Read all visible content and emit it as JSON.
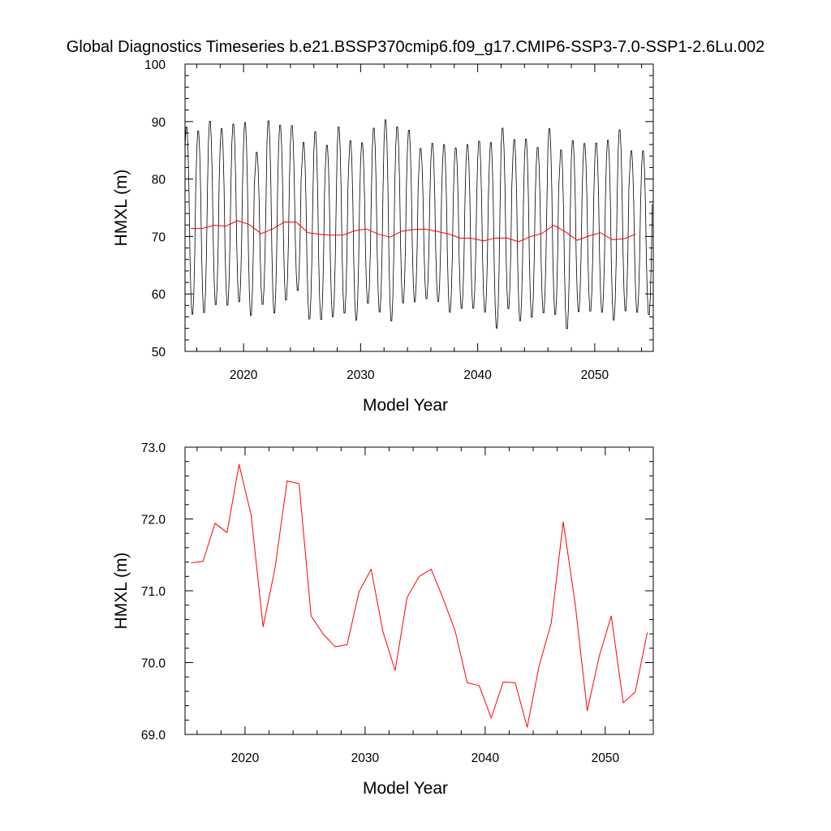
{
  "figure_title": "Global Diagnostics Timeseries b.e21.BSSP370cmip6.f09_g17.CMIP6-SSP3-7.0-SSP1-2.6Lu.002",
  "colors": {
    "monthly": "#000000",
    "annual": "#ff0000",
    "axes": "#000000",
    "background": "#ffffff"
  },
  "chart_data": [
    {
      "type": "line",
      "xlabel": "Model Year",
      "ylabel": "HMXL (m)",
      "xlim": [
        2015.0,
        2055.0
      ],
      "ylim": [
        50,
        100
      ],
      "x_ticks": [
        2020,
        2030,
        2040,
        2050
      ],
      "y_ticks": [
        50,
        60,
        70,
        80,
        90,
        100
      ],
      "y_tick_labels": [
        "50",
        "60",
        "70",
        "80",
        "90",
        "100"
      ],
      "grid": false,
      "legend": "none",
      "series": [
        {
          "kind": "monthly",
          "start_x": 2015.0,
          "step": 0.08333,
          "annual_max": [
            89.5,
            88.8,
            90.5,
            89.2,
            90.0,
            90.3,
            85.0,
            90.6,
            89.8,
            89.7,
            86.8,
            88.7,
            86.3,
            89.5,
            87.1,
            86.7,
            89.3,
            90.8,
            89.5,
            88.9,
            85.7,
            86.6,
            86.4,
            85.8,
            86.4,
            87.0,
            86.8,
            89.3,
            87.3,
            87.4,
            85.9,
            89.2,
            85.5,
            87.1,
            86.6,
            86.7,
            87.2,
            89.0,
            85.3,
            85.3
          ],
          "annual_min": [
            56.0,
            56.3,
            57.7,
            57.6,
            58.2,
            55.8,
            57.8,
            56.2,
            58.5,
            60.2,
            55.2,
            55.1,
            55.6,
            56.2,
            55.0,
            58.0,
            56.4,
            54.8,
            58.0,
            58.2,
            58.8,
            58.3,
            56.4,
            57.1,
            57.1,
            56.4,
            53.6,
            57.0,
            54.9,
            55.5,
            56.3,
            56.0,
            53.5,
            56.5,
            56.6,
            56.4,
            55.0,
            56.6,
            56.4,
            56.0
          ]
        },
        {
          "kind": "annual",
          "x": [
            2015.5,
            2016.5,
            2017.5,
            2018.5,
            2019.5,
            2020.5,
            2021.5,
            2022.5,
            2023.5,
            2024.5,
            2025.5,
            2026.5,
            2027.5,
            2028.5,
            2029.5,
            2030.5,
            2031.5,
            2032.5,
            2033.5,
            2034.5,
            2035.5,
            2036.5,
            2037.5,
            2038.5,
            2039.5,
            2040.5,
            2041.5,
            2042.5,
            2043.5,
            2044.5,
            2045.5,
            2046.5,
            2047.5,
            2048.5,
            2049.5,
            2050.5,
            2051.5,
            2052.5,
            2053.5
          ],
          "y": [
            71.39,
            71.41,
            71.94,
            71.81,
            72.76,
            72.06,
            70.5,
            71.32,
            72.53,
            72.49,
            70.65,
            70.4,
            70.22,
            70.25,
            70.99,
            71.3,
            70.42,
            69.89,
            70.91,
            71.2,
            71.3,
            70.89,
            70.44,
            69.72,
            69.68,
            69.23,
            69.73,
            69.72,
            69.1,
            69.96,
            70.55,
            71.96,
            70.81,
            69.33,
            70.09,
            70.65,
            69.44,
            69.59,
            70.42
          ]
        }
      ]
    },
    {
      "type": "line",
      "xlabel": "Model Year",
      "ylabel": "HMXL (m)",
      "xlim": [
        2015.0,
        2054.0
      ],
      "ylim": [
        69.0,
        73.0
      ],
      "x_ticks": [
        2020,
        2030,
        2040,
        2050
      ],
      "y_ticks": [
        69,
        70,
        71,
        72,
        73
      ],
      "y_tick_labels": [
        "69.0",
        "70.0",
        "71.0",
        "72.0",
        "73.0"
      ],
      "grid": false,
      "legend": "none",
      "series": [
        {
          "kind": "annual",
          "x": [
            2015.5,
            2016.5,
            2017.5,
            2018.5,
            2019.5,
            2020.5,
            2021.5,
            2022.5,
            2023.5,
            2024.5,
            2025.5,
            2026.5,
            2027.5,
            2028.5,
            2029.5,
            2030.5,
            2031.5,
            2032.5,
            2033.5,
            2034.5,
            2035.5,
            2036.5,
            2037.5,
            2038.5,
            2039.5,
            2040.5,
            2041.5,
            2042.5,
            2043.5,
            2044.5,
            2045.5,
            2046.5,
            2047.5,
            2048.5,
            2049.5,
            2050.5,
            2051.5,
            2052.5,
            2053.5
          ],
          "y": [
            71.39,
            71.41,
            71.94,
            71.81,
            72.76,
            72.06,
            70.5,
            71.32,
            72.53,
            72.49,
            70.65,
            70.4,
            70.22,
            70.25,
            70.99,
            71.3,
            70.42,
            69.89,
            70.91,
            71.2,
            71.3,
            70.89,
            70.44,
            69.72,
            69.68,
            69.23,
            69.73,
            69.72,
            69.1,
            69.96,
            70.55,
            71.96,
            70.81,
            69.33,
            70.09,
            70.65,
            69.44,
            69.59,
            70.42
          ]
        }
      ]
    }
  ]
}
